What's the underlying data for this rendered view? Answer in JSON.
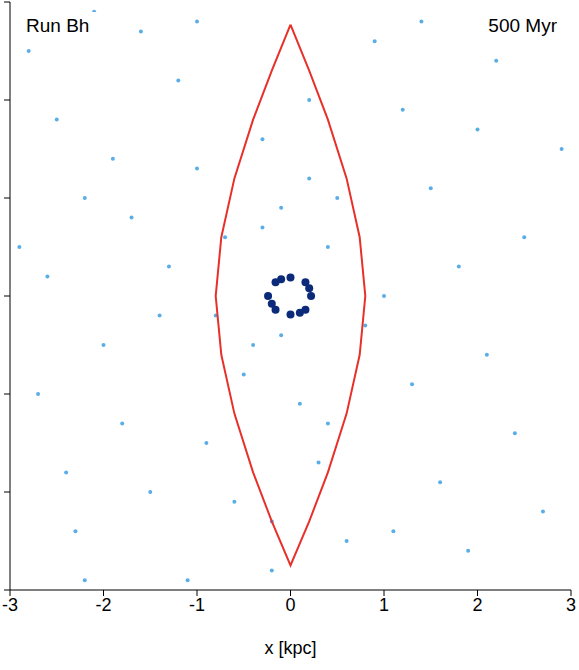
{
  "chart_data": {
    "type": "scatter",
    "annotations": [
      "Run Bh",
      "500 Myr"
    ],
    "xlabel": "x [kpc]",
    "xlim": [
      -3,
      3
    ],
    "xticks": [
      -3,
      -2,
      -1,
      0,
      1,
      2,
      3
    ],
    "ylim": [
      -3,
      3
    ],
    "yticks": [
      -3,
      -2,
      -1,
      0,
      1,
      2,
      3
    ],
    "tick_labels": "x",
    "series": [
      {
        "type": "scatter",
        "color": "#5aaee8",
        "x": [
          -2.8,
          -2.5,
          -2.2,
          -2.6,
          -2.0,
          -1.8,
          -1.5,
          -2.3,
          -1.2,
          -1.0,
          -0.7,
          -1.6,
          -2.7,
          -2.1,
          -1.4,
          -0.9,
          -0.5,
          -0.3,
          0.3,
          0.5,
          0.9,
          1.2,
          1.5,
          1.8,
          2.1,
          2.4,
          2.7,
          2.2,
          1.9,
          1.6,
          1.3,
          1.0,
          0.6,
          0.2,
          -0.2,
          -0.6,
          -1.1,
          -1.7,
          -2.4,
          -2.9,
          2.9,
          2.5,
          2.0,
          1.4,
          0.8,
          0.4,
          -0.1,
          -0.4,
          -0.8,
          -1.3,
          -1.9,
          -2.2,
          0.1,
          -0.1,
          0.2,
          -0.3,
          0.4,
          -0.2,
          1.1,
          -1.0
        ],
        "y": [
          2.5,
          1.8,
          1.0,
          0.2,
          -0.5,
          -1.3,
          -2.0,
          -2.4,
          2.2,
          1.3,
          0.6,
          2.7,
          -1.0,
          2.9,
          -0.2,
          -1.5,
          -0.8,
          1.6,
          -1.7,
          1.0,
          2.6,
          1.9,
          1.1,
          0.3,
          -0.6,
          -1.4,
          -2.2,
          2.4,
          -2.6,
          -1.9,
          -0.9,
          0.0,
          -2.5,
          2.0,
          -2.8,
          -2.1,
          -2.9,
          0.8,
          -1.8,
          0.5,
          1.5,
          0.6,
          1.7,
          2.8,
          -0.3,
          0.5,
          0.9,
          -0.5,
          -0.2,
          0.3,
          1.4,
          -2.9,
          -1.1,
          -0.4,
          1.2,
          0.7,
          -1.3,
          -2.3,
          -2.4,
          2.8
        ]
      },
      {
        "type": "scatter",
        "color": "#0b2a7a",
        "x": [
          0.22,
          0.16,
          0,
          -0.16,
          -0.24,
          -0.16,
          0,
          0.16,
          0.2,
          -0.2,
          0.1,
          -0.1
        ],
        "y": [
          0,
          0.14,
          0.19,
          0.14,
          0,
          -0.14,
          -0.19,
          -0.14,
          0.08,
          -0.08,
          -0.17,
          0.17
        ]
      },
      {
        "type": "line",
        "color": "#e8302a",
        "x": [
          0,
          0.2,
          0.4,
          0.6,
          0.74,
          0.8,
          0.74,
          0.6,
          0.4,
          0.2,
          0,
          -0.2,
          -0.4,
          -0.6,
          -0.74,
          -0.8,
          -0.74,
          -0.6,
          -0.4,
          -0.2,
          0
        ],
        "y": [
          2.77,
          2.3,
          1.8,
          1.2,
          0.6,
          0,
          -0.6,
          -1.2,
          -1.8,
          -2.3,
          -2.75,
          -2.3,
          -1.8,
          -1.2,
          -0.6,
          0,
          0.6,
          1.2,
          1.8,
          2.3,
          2.77
        ]
      }
    ]
  }
}
